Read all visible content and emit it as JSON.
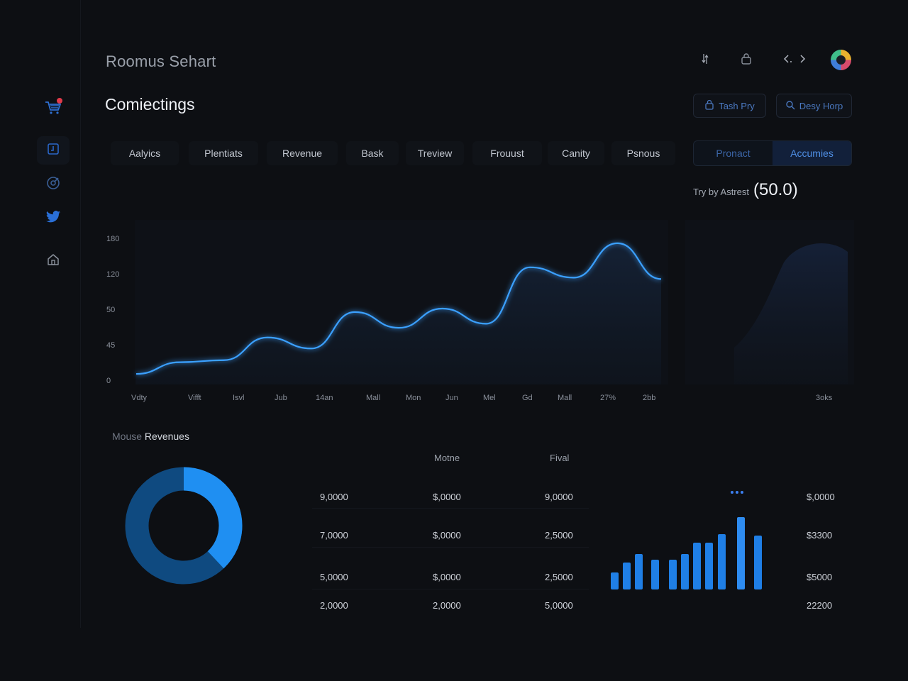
{
  "app": {
    "title": "Roomus Sehart",
    "page_title": "Comiectings"
  },
  "top_actions": {
    "btn1_label": "Tash Pry",
    "btn2_label": "Desy Horp",
    "icons": [
      "exchange-icon",
      "lock-icon",
      "code-icon",
      "avatar"
    ]
  },
  "sidebar": {
    "items": [
      {
        "icon": "cart-icon",
        "badge": true
      },
      {
        "icon": "document-icon",
        "active": true
      },
      {
        "icon": "target-icon"
      },
      {
        "icon": "twitter-icon"
      },
      {
        "icon": "home-icon"
      }
    ]
  },
  "tabs": [
    "Aalyics",
    "Plentiats",
    "Revenue",
    "Bask",
    "Treview",
    "Frouust",
    "Canity",
    "Psnous"
  ],
  "segment": {
    "options": [
      "Pronact",
      "Accumies"
    ],
    "selected": "Accumies"
  },
  "side_metric": {
    "label": "Try by Astrest",
    "value": "(50.0)"
  },
  "colors": {
    "background": "#0d0f13",
    "accent": "#2e8cf0",
    "line_glow": "#3aa0ff",
    "donut_light": "#1f8ff2",
    "donut_dark": "#0f4a80"
  },
  "chart_data": {
    "type": "line",
    "x": [
      "Vdty",
      "Vifft",
      "Isvl",
      "Jub",
      "14an",
      "Mall",
      "Mon",
      "Jun",
      "Mel",
      "Gd",
      "Mall",
      "27%",
      "2bb"
    ],
    "y_ticks": [
      "180",
      "120",
      "50",
      "45",
      "0"
    ],
    "series": [
      {
        "values": [
          5,
          22,
          25,
          58,
          42,
          95,
          72,
          100,
          78,
          160,
          145,
          195,
          143
        ]
      }
    ],
    "right_label": "3oks",
    "grid": false,
    "legend": "none"
  },
  "revenue": {
    "label_muted": "Mouse",
    "label_strong": "Revenues",
    "donut_fraction": 0.38,
    "table_headers": [
      "",
      "Motne",
      "Fival"
    ],
    "rows": [
      [
        "9,0000",
        "$,0000",
        "9,0000"
      ],
      [
        "7,0000",
        "$,0000",
        "2,5000"
      ],
      [
        "5,0000",
        "$,0000",
        "2,5000"
      ],
      [
        "2,0000",
        "2,0000",
        "5,0000"
      ]
    ],
    "right_values": [
      "$,0000",
      "$3300",
      "$5000",
      "22200"
    ],
    "bars": [
      24,
      38,
      50,
      42,
      42,
      50,
      66,
      66,
      78,
      102,
      76
    ]
  }
}
